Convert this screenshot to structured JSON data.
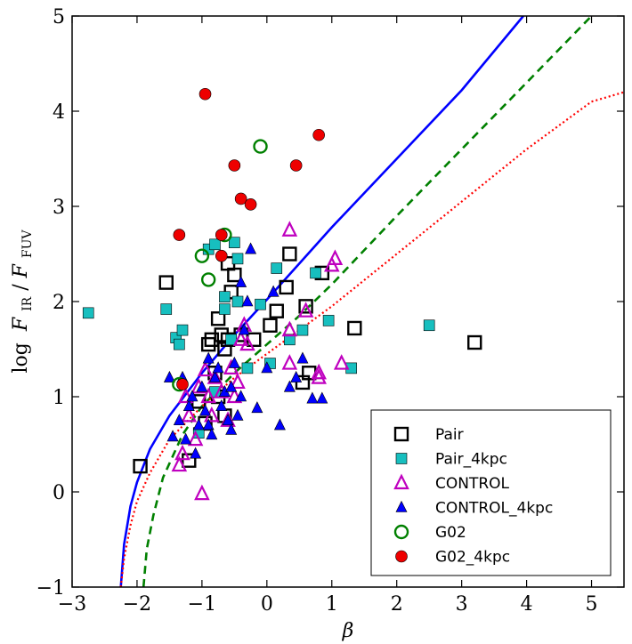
{
  "chart_data": {
    "type": "scatter",
    "xlabel": "β",
    "ylabel": "log F_IR/F_FUV",
    "ylabel_parts": {
      "log": "log",
      "F1": "F",
      "sub1": "IR",
      "slash": "/",
      "F2": "F",
      "sub2": "FUV"
    },
    "xlim": [
      -3,
      5.5
    ],
    "ylim": [
      -1,
      5
    ],
    "xticks": [
      -3,
      -2,
      -1,
      0,
      1,
      2,
      3,
      4,
      5
    ],
    "yticks": [
      -1,
      0,
      1,
      2,
      3,
      4,
      5
    ],
    "xtick_labels": [
      "−3",
      "−2",
      "−1",
      "0",
      "1",
      "2",
      "3",
      "4",
      "5"
    ],
    "ytick_labels": [
      "−1",
      "0",
      "1",
      "2",
      "3",
      "4",
      "5"
    ],
    "legend_position": "lower-right",
    "series": [
      {
        "name": "Pair",
        "marker": "square-open",
        "color": "#000000",
        "points": [
          [
            -1.95,
            0.27
          ],
          [
            -1.55,
            2.2
          ],
          [
            -1.2,
            0.33
          ],
          [
            -0.95,
            0.72
          ],
          [
            -1.05,
            0.95
          ],
          [
            -0.9,
            1.55
          ],
          [
            -0.85,
            1.6
          ],
          [
            -0.75,
            1.82
          ],
          [
            -0.7,
            1.65
          ],
          [
            -0.65,
            1.5
          ],
          [
            -0.6,
            1.6
          ],
          [
            -0.75,
            1.0
          ],
          [
            -0.65,
            0.8
          ],
          [
            -0.55,
            2.1
          ],
          [
            -0.5,
            2.28
          ],
          [
            -0.6,
            2.4
          ],
          [
            -0.4,
            1.65
          ],
          [
            -0.2,
            1.6
          ],
          [
            0.05,
            1.75
          ],
          [
            0.15,
            1.9
          ],
          [
            0.3,
            2.15
          ],
          [
            0.35,
            2.5
          ],
          [
            0.55,
            1.15
          ],
          [
            0.6,
            1.95
          ],
          [
            0.65,
            1.25
          ],
          [
            1.35,
            1.72
          ],
          [
            3.2,
            1.57
          ],
          [
            0.85,
            2.3
          ],
          [
            -0.8,
            1.25
          ]
        ]
      },
      {
        "name": "Pair_4kpc",
        "marker": "square",
        "color": "#17bfbf",
        "points": [
          [
            -2.75,
            1.88
          ],
          [
            -1.55,
            1.92
          ],
          [
            -1.4,
            1.62
          ],
          [
            -1.35,
            1.55
          ],
          [
            -1.3,
            1.7
          ],
          [
            -0.9,
            2.55
          ],
          [
            -0.8,
            2.6
          ],
          [
            -0.5,
            2.62
          ],
          [
            -0.45,
            2.45
          ],
          [
            -0.65,
            2.05
          ],
          [
            -0.55,
            1.6
          ],
          [
            -0.45,
            2.0
          ],
          [
            -0.65,
            1.92
          ],
          [
            -0.1,
            1.97
          ],
          [
            0.15,
            2.35
          ],
          [
            0.35,
            1.6
          ],
          [
            0.55,
            1.7
          ],
          [
            0.75,
            2.3
          ],
          [
            0.95,
            1.8
          ],
          [
            1.3,
            1.3
          ],
          [
            2.5,
            1.75
          ],
          [
            0.05,
            1.35
          ],
          [
            -1.05,
            0.62
          ],
          [
            -0.8,
            1.05
          ],
          [
            -0.3,
            1.3
          ]
        ]
      },
      {
        "name": "CONTROL",
        "marker": "triangle-open",
        "color": "#bf00bf",
        "points": [
          [
            -1.35,
            0.28
          ],
          [
            -1.3,
            0.4
          ],
          [
            -1.2,
            0.8
          ],
          [
            -1.1,
            0.55
          ],
          [
            -1.05,
            1.1
          ],
          [
            -1.0,
            -0.02
          ],
          [
            -0.95,
            1.28
          ],
          [
            -0.9,
            1.0
          ],
          [
            -0.85,
            0.8
          ],
          [
            -0.8,
            1.2
          ],
          [
            -0.7,
            1.05
          ],
          [
            -0.6,
            0.75
          ],
          [
            -0.55,
            1.3
          ],
          [
            -0.5,
            1.0
          ],
          [
            -0.45,
            1.15
          ],
          [
            -0.4,
            1.6
          ],
          [
            -0.35,
            1.75
          ],
          [
            -0.3,
            1.55
          ],
          [
            0.35,
            1.35
          ],
          [
            0.35,
            1.7
          ],
          [
            0.35,
            2.75
          ],
          [
            0.6,
            1.9
          ],
          [
            0.8,
            1.2
          ],
          [
            0.8,
            1.25
          ],
          [
            1.0,
            2.38
          ],
          [
            1.05,
            2.45
          ],
          [
            1.15,
            1.35
          ],
          [
            -1.25,
            1.0
          ]
        ]
      },
      {
        "name": "CONTROL_4kpc",
        "marker": "triangle",
        "color": "#0000ff",
        "points": [
          [
            -1.45,
            0.58
          ],
          [
            -1.35,
            0.75
          ],
          [
            -1.3,
            1.2
          ],
          [
            -1.25,
            0.55
          ],
          [
            -1.2,
            0.9
          ],
          [
            -1.15,
            1.0
          ],
          [
            -1.1,
            0.4
          ],
          [
            -1.05,
            0.7
          ],
          [
            -1.0,
            1.1
          ],
          [
            -0.95,
            0.85
          ],
          [
            -0.9,
            0.7
          ],
          [
            -0.85,
            0.6
          ],
          [
            -0.8,
            1.2
          ],
          [
            -0.75,
            1.3
          ],
          [
            -0.7,
            0.9
          ],
          [
            -0.65,
            1.05
          ],
          [
            -0.6,
            0.75
          ],
          [
            -0.55,
            1.1
          ],
          [
            -0.5,
            1.35
          ],
          [
            -0.45,
            0.8
          ],
          [
            -0.4,
            1.0
          ],
          [
            -0.35,
            1.7
          ],
          [
            -0.3,
            2.0
          ],
          [
            -0.25,
            2.55
          ],
          [
            -0.15,
            0.88
          ],
          [
            0.0,
            1.3
          ],
          [
            0.1,
            2.1
          ],
          [
            0.2,
            0.7
          ],
          [
            0.35,
            1.1
          ],
          [
            0.45,
            1.2
          ],
          [
            0.55,
            1.4
          ],
          [
            0.7,
            0.98
          ],
          [
            0.85,
            0.98
          ],
          [
            -1.5,
            1.2
          ],
          [
            -0.9,
            1.4
          ],
          [
            -0.55,
            0.65
          ],
          [
            -0.4,
            2.2
          ]
        ]
      },
      {
        "name": "G02",
        "marker": "circle-open",
        "color": "#008000",
        "points": [
          [
            -1.35,
            1.13
          ],
          [
            -1.0,
            2.48
          ],
          [
            -0.9,
            2.23
          ],
          [
            -0.65,
            2.7
          ],
          [
            -0.1,
            3.63
          ]
        ]
      },
      {
        "name": "G02_4kpc",
        "marker": "circle",
        "color": "#ee0000",
        "points": [
          [
            -1.35,
            2.7
          ],
          [
            -1.3,
            1.13
          ],
          [
            -0.95,
            4.18
          ],
          [
            -0.7,
            2.7
          ],
          [
            -0.7,
            2.48
          ],
          [
            -0.5,
            3.43
          ],
          [
            -0.4,
            3.08
          ],
          [
            -0.25,
            3.02
          ],
          [
            0.45,
            3.43
          ],
          [
            0.8,
            3.75
          ]
        ]
      }
    ],
    "lines": [
      {
        "name": "solid-curve",
        "style": "solid",
        "color": "#0000ff",
        "points": [
          [
            -2.25,
            -1.0
          ],
          [
            -2.2,
            -0.55
          ],
          [
            -2.1,
            -0.15
          ],
          [
            -2.0,
            0.1
          ],
          [
            -1.8,
            0.45
          ],
          [
            -1.5,
            0.8
          ],
          [
            -1.0,
            1.25
          ],
          [
            -0.5,
            1.65
          ],
          [
            0.0,
            2.02
          ],
          [
            0.5,
            2.4
          ],
          [
            1.0,
            2.78
          ],
          [
            2.0,
            3.5
          ],
          [
            3.0,
            4.22
          ],
          [
            3.95,
            5.0
          ]
        ]
      },
      {
        "name": "dashed-curve",
        "style": "dashed",
        "color": "#008000",
        "points": [
          [
            -1.9,
            -1.0
          ],
          [
            -1.85,
            -0.6
          ],
          [
            -1.75,
            -0.25
          ],
          [
            -1.6,
            0.15
          ],
          [
            -1.3,
            0.6
          ],
          [
            -1.0,
            0.9
          ],
          [
            -0.5,
            1.25
          ],
          [
            0.0,
            1.55
          ],
          [
            0.5,
            1.85
          ],
          [
            1.0,
            2.18
          ],
          [
            2.0,
            2.9
          ],
          [
            3.0,
            3.6
          ],
          [
            4.0,
            4.3
          ],
          [
            5.0,
            5.0
          ]
        ]
      },
      {
        "name": "dotted-curve",
        "style": "dotted",
        "color": "#ff0000",
        "points": [
          [
            -2.25,
            -1.0
          ],
          [
            -2.2,
            -0.7
          ],
          [
            -2.1,
            -0.35
          ],
          [
            -2.0,
            -0.1
          ],
          [
            -1.8,
            0.2
          ],
          [
            -1.5,
            0.55
          ],
          [
            -1.0,
            0.9
          ],
          [
            -0.5,
            1.2
          ],
          [
            0.0,
            1.45
          ],
          [
            0.5,
            1.7
          ],
          [
            1.0,
            1.95
          ],
          [
            2.0,
            2.5
          ],
          [
            3.0,
            3.05
          ],
          [
            4.0,
            3.6
          ],
          [
            5.0,
            4.1
          ],
          [
            5.5,
            4.2
          ]
        ]
      }
    ]
  }
}
